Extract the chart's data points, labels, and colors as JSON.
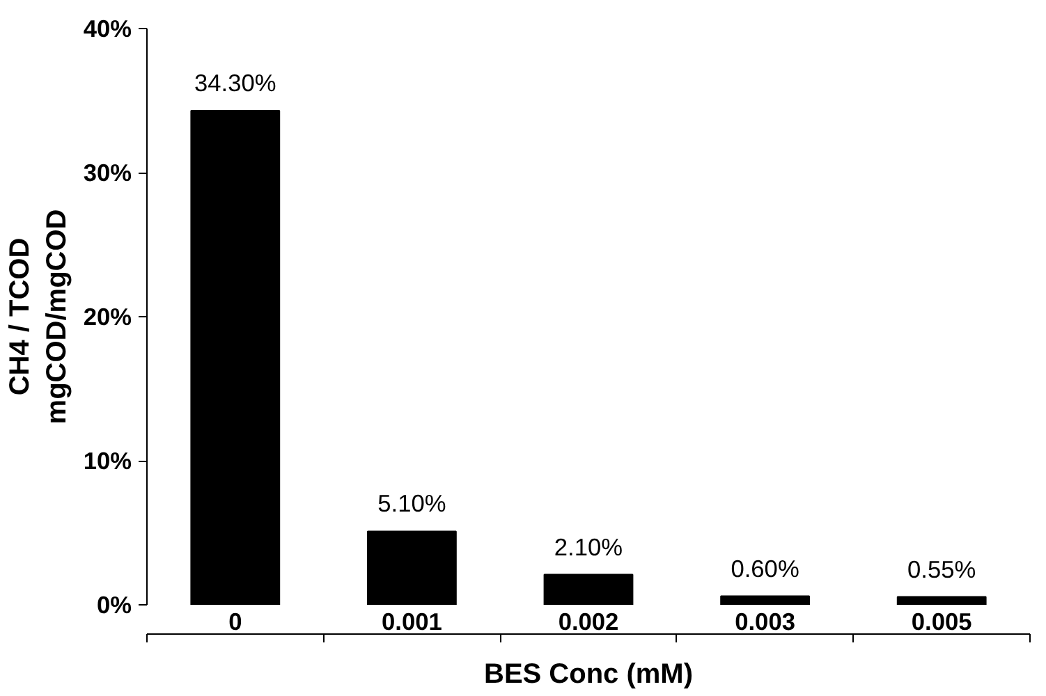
{
  "chart_data": {
    "type": "bar",
    "xlabel": "BES Conc (mM)",
    "ylabel": "CH4 / TCOD\nmgCOD/mgCOD",
    "categories": [
      "0",
      "0.001",
      "0.002",
      "0.003",
      "0.005"
    ],
    "values": [
      34.3,
      5.1,
      2.1,
      0.6,
      0.55
    ],
    "value_labels": [
      "34.30%",
      "5.10%",
      "2.10%",
      "0.60%",
      "0.55%"
    ],
    "color": "#000000",
    "ylim": [
      0,
      40
    ],
    "yticks": [
      {
        "value": 0,
        "label": "0%"
      },
      {
        "value": 10,
        "label": "10%"
      },
      {
        "value": 20,
        "label": "20%"
      },
      {
        "value": 30,
        "label": "30%"
      },
      {
        "value": 40,
        "label": "40%"
      }
    ],
    "grid": false
  }
}
